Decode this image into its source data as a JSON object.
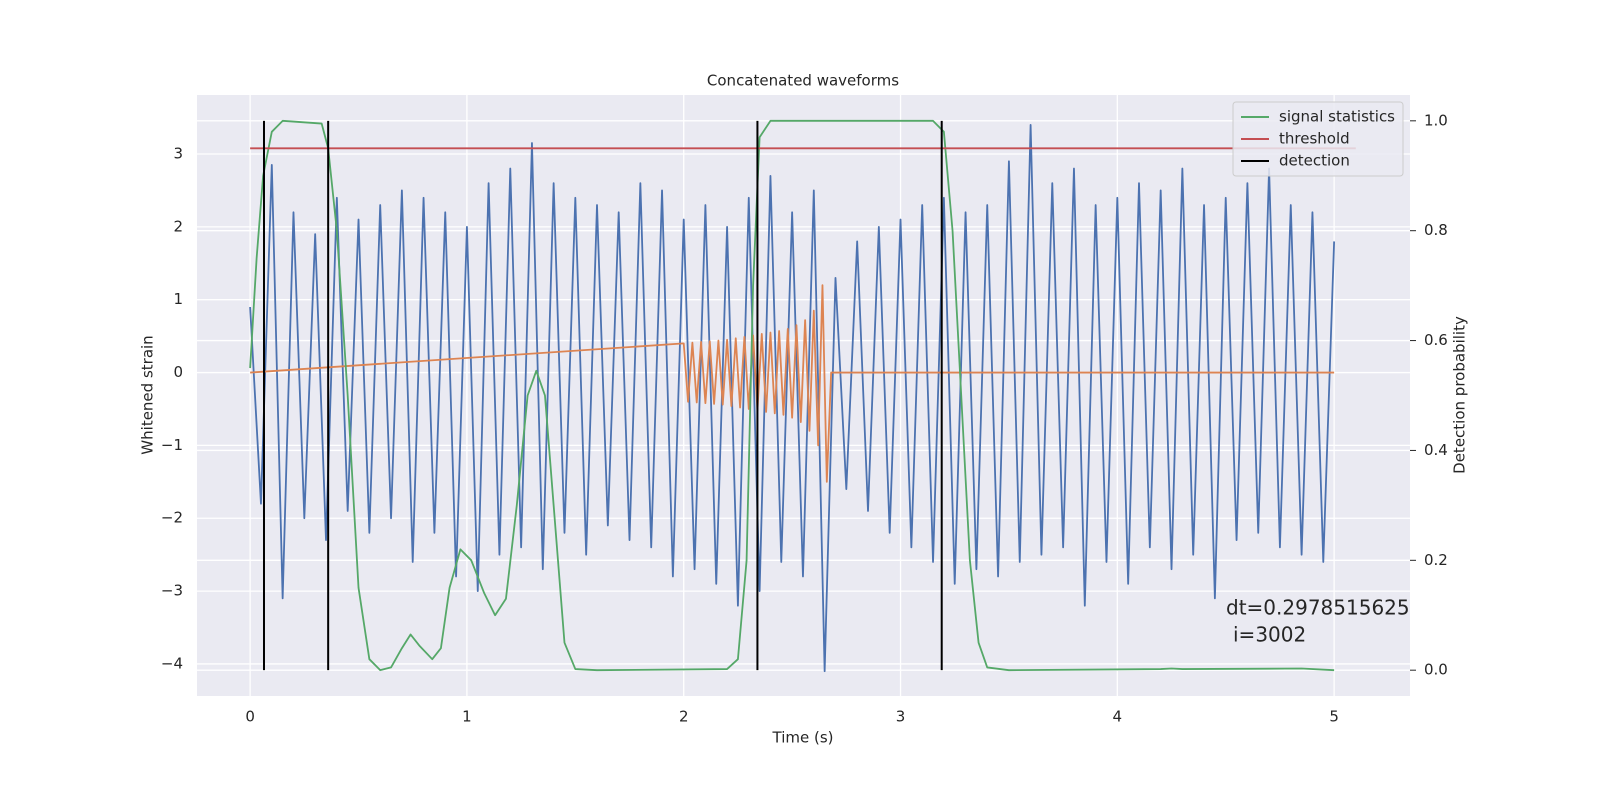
{
  "chart_data": {
    "type": "line",
    "title": "Concatenated waveforms",
    "xlabel": "Time (s)",
    "ylabel": "Whitened strain",
    "y2label": "Detection probability",
    "xlim": [
      -0.245,
      5.35
    ],
    "ylim": [
      -4.44,
      3.81
    ],
    "y2lim": [
      -0.047,
      1.047
    ],
    "xticks": [
      0,
      1,
      2,
      3,
      4,
      5
    ],
    "yticks": [
      {
        "value": -4,
        "label": "−4"
      },
      {
        "value": -3,
        "label": "−3"
      },
      {
        "value": -2,
        "label": "−2"
      },
      {
        "value": -1,
        "label": "−1"
      },
      0,
      1,
      2,
      3
    ],
    "y2ticks": [
      {
        "value": 0,
        "label": "0.0"
      },
      {
        "value": 0.2,
        "label": "0.2"
      },
      {
        "value": 0.4,
        "label": "0.4"
      },
      {
        "value": 0.6,
        "label": "0.6"
      },
      {
        "value": 0.8,
        "label": "0.8"
      },
      {
        "value": 1,
        "label": "1.0"
      }
    ],
    "grid": true,
    "legend": "upper right",
    "series": [
      {
        "color": "#4c72b0",
        "x": [
          0,
          0.05,
          0.1,
          0.15,
          0.2,
          0.25,
          0.3,
          0.35,
          0.4,
          0.45,
          0.5,
          0.55,
          0.6,
          0.65,
          0.7,
          0.75,
          0.8,
          0.85,
          0.9,
          0.95,
          1,
          1.05,
          1.1,
          1.15,
          1.2,
          1.25,
          1.3,
          1.35,
          1.4,
          1.45,
          1.5,
          1.55,
          1.6,
          1.65,
          1.7,
          1.75,
          1.8,
          1.85,
          1.9,
          1.95,
          2,
          2.05,
          2.1,
          2.15,
          2.2,
          2.25,
          2.3,
          2.35,
          2.4,
          2.45,
          2.5,
          2.55,
          2.6,
          2.65,
          2.7,
          2.75,
          2.8,
          2.85,
          2.9,
          2.95,
          3,
          3.05,
          3.1,
          3.15,
          3.2,
          3.25,
          3.3,
          3.35,
          3.4,
          3.45,
          3.5,
          3.55,
          3.6,
          3.65,
          3.7,
          3.75,
          3.8,
          3.85,
          3.9,
          3.95,
          4,
          4.05,
          4.1,
          4.15,
          4.2,
          4.25,
          4.3,
          4.35,
          4.4,
          4.45,
          4.5,
          4.55,
          4.6,
          4.65,
          4.7,
          4.75,
          4.8,
          4.85,
          4.9,
          4.95,
          5
        ],
        "values": [
          0.9,
          -1.8,
          2.85,
          -3.1,
          2.2,
          -2.0,
          1.9,
          -2.3,
          2.4,
          -1.9,
          2.1,
          -2.2,
          2.3,
          -2.0,
          2.5,
          -2.6,
          2.4,
          -2.2,
          2.2,
          -2.8,
          2.0,
          -3.0,
          2.6,
          -2.5,
          2.8,
          -2.4,
          3.15,
          -2.7,
          2.6,
          -2.2,
          2.4,
          -2.5,
          2.3,
          -2.1,
          2.2,
          -2.3,
          2.6,
          -2.4,
          2.5,
          -2.8,
          2.1,
          -2.7,
          2.3,
          -2.9,
          2.0,
          -3.2,
          2.4,
          -3.0,
          2.7,
          -2.6,
          2.2,
          -2.8,
          2.5,
          -4.1,
          1.3,
          -1.6,
          1.8,
          -1.9,
          2.0,
          -2.2,
          2.1,
          -2.4,
          2.3,
          -2.6,
          2.4,
          -2.9,
          2.2,
          -2.7,
          2.3,
          -2.8,
          2.9,
          -2.6,
          3.4,
          -2.5,
          2.6,
          -2.4,
          2.8,
          -3.2,
          2.3,
          -2.6,
          2.4,
          -2.9,
          2.6,
          -2.4,
          2.5,
          -2.7,
          2.8,
          -2.5,
          2.3,
          -3.1,
          2.4,
          -2.3,
          2.6,
          -2.2,
          2.8,
          -2.4,
          2.3,
          -2.5,
          2.2,
          -2.6,
          1.8
        ]
      },
      {
        "color": "#dd8452",
        "x": [
          0,
          2,
          2.02,
          2.04,
          2.06,
          2.08,
          2.1,
          2.12,
          2.14,
          2.16,
          2.18,
          2.2,
          2.22,
          2.24,
          2.26,
          2.28,
          2.3,
          2.32,
          2.34,
          2.36,
          2.38,
          2.4,
          2.42,
          2.44,
          2.46,
          2.48,
          2.5,
          2.52,
          2.54,
          2.56,
          2.58,
          2.6,
          2.62,
          2.64,
          2.66,
          2.68,
          5
        ],
        "values": [
          0,
          0.4,
          -0.4,
          0.41,
          -0.41,
          0.42,
          -0.42,
          0.43,
          -0.43,
          0.44,
          -0.44,
          0.45,
          -0.46,
          0.47,
          -0.48,
          0.49,
          -0.5,
          0.51,
          -0.52,
          0.53,
          -0.54,
          0.55,
          -0.56,
          0.57,
          -0.58,
          0.6,
          -0.62,
          0.65,
          -0.68,
          0.72,
          -0.8,
          0.85,
          -1.0,
          1.2,
          -1.5,
          0,
          0
        ]
      },
      {
        "name": "signal statistics",
        "color": "#55a868",
        "axis": "y2",
        "x": [
          0,
          0.03,
          0.06,
          0.1,
          0.15,
          0.33,
          0.36,
          0.4,
          0.45,
          0.5,
          0.55,
          0.6,
          0.65,
          0.7,
          0.74,
          0.78,
          0.84,
          0.88,
          0.92,
          0.97,
          1.02,
          1.08,
          1.13,
          1.18,
          1.23,
          1.28,
          1.32,
          1.36,
          1.4,
          1.45,
          1.5,
          1.6,
          2.2,
          2.25,
          2.29,
          2.32,
          2.35,
          2.4,
          3.15,
          3.2,
          3.24,
          3.28,
          3.32,
          3.36,
          3.4,
          3.5,
          4.2,
          4.25,
          4.3,
          4.85,
          5
        ],
        "values": [
          0.55,
          0.75,
          0.9,
          0.98,
          1.0,
          0.995,
          0.95,
          0.8,
          0.5,
          0.15,
          0.02,
          0.0,
          0.005,
          0.04,
          0.065,
          0.045,
          0.02,
          0.04,
          0.15,
          0.22,
          0.2,
          0.14,
          0.1,
          0.13,
          0.3,
          0.5,
          0.545,
          0.5,
          0.3,
          0.05,
          0.002,
          0,
          0.002,
          0.02,
          0.2,
          0.7,
          0.97,
          1.0,
          1.0,
          0.98,
          0.8,
          0.5,
          0.2,
          0.05,
          0.005,
          0,
          0.002,
          0.003,
          0.002,
          0.003,
          0
        ]
      },
      {
        "name": "threshold",
        "color": "#c44e52",
        "axis": "y2",
        "x": [
          0,
          5.1
        ],
        "values": [
          0.95,
          0.95
        ]
      },
      {
        "name": "detection",
        "color": "#000000",
        "axis": "y2",
        "type": "vlines",
        "x": [
          0.064,
          0.36,
          2.34,
          3.19
        ],
        "values": [
          1,
          1,
          1,
          1
        ]
      }
    ],
    "annotation": [
      "dt=0.2978515625",
      "i=3002"
    ]
  }
}
